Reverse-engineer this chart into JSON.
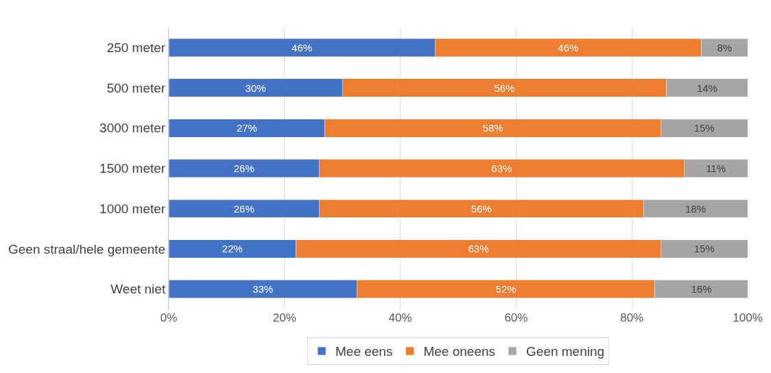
{
  "chart_data": {
    "type": "bar",
    "orientation": "horizontal",
    "stacked": true,
    "categories": [
      "250 meter",
      "500 meter",
      "3000 meter",
      "1500 meter",
      "1000 meter",
      "Geen straal/hele gemeente",
      "Weet niet"
    ],
    "series": [
      {
        "name": "Mee eens",
        "color": "#4472c4",
        "values": [
          46,
          30,
          27,
          26,
          26,
          22,
          32.5
        ],
        "value_labels": [
          "46%",
          "30%",
          "27%",
          "26%",
          "26%",
          "22%",
          "33%"
        ]
      },
      {
        "name": "Mee oneens",
        "color": "#ed7d31",
        "values": [
          46,
          56,
          58,
          63,
          56,
          63,
          51.5
        ],
        "value_labels": [
          "46%",
          "56%",
          "58%",
          "63%",
          "56%",
          "63%",
          "52%"
        ]
      },
      {
        "name": "Geen mening",
        "color": "#a5a5a5",
        "values": [
          8,
          14,
          15,
          11,
          18,
          15,
          16
        ],
        "value_labels": [
          "8%",
          "14%",
          "15%",
          "11%",
          "18%",
          "15%",
          "16%"
        ]
      }
    ],
    "xlim": [
      0,
      100
    ],
    "xticks": [
      {
        "value": 0,
        "label": "0%"
      },
      {
        "value": 20,
        "label": "20%"
      },
      {
        "value": 40,
        "label": "40%"
      },
      {
        "value": 60,
        "label": "60%"
      },
      {
        "value": 80,
        "label": "80%"
      },
      {
        "value": 100,
        "label": "100%"
      }
    ],
    "grid": "x",
    "legend": "bottom"
  }
}
